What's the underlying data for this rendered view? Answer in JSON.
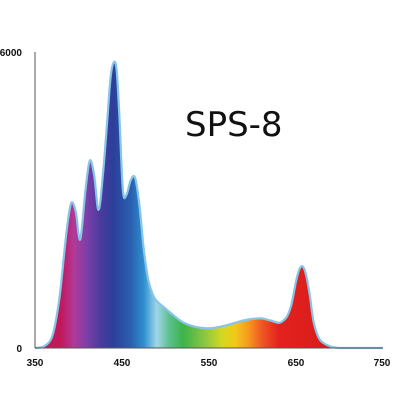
{
  "chart_data": {
    "type": "area",
    "title": "SPS-8",
    "xlabel": "",
    "ylabel": "",
    "xlim": [
      350,
      750
    ],
    "ylim": [
      0,
      6000
    ],
    "x_ticks": [
      350,
      450,
      550,
      650,
      750
    ],
    "x_tick_labels": [
      "350",
      "450",
      "550",
      "650",
      "750"
    ],
    "y_tick_labels": [
      "0",
      "6000"
    ],
    "grid": false,
    "legend": "none",
    "fill": "visible-spectrum gradient",
    "line_color": "#86c5e8",
    "series": [
      {
        "x": [
          350,
          360,
          370,
          378,
          384,
          388,
          392,
          397,
          402,
          408,
          413,
          418,
          423,
          428,
          433,
          437,
          441,
          444,
          447,
          451,
          455,
          460,
          465,
          470,
          475,
          480,
          485,
          490,
          500,
          510,
          520,
          530,
          540,
          550,
          560,
          570,
          580,
          590,
          600,
          610,
          620,
          630,
          635,
          640,
          645,
          650,
          654,
          658,
          662,
          666,
          670,
          675,
          680,
          690,
          700,
          710,
          720,
          730,
          750
        ],
        "y": [
          0,
          30,
          250,
          1000,
          2000,
          2600,
          2950,
          2750,
          2200,
          3200,
          3800,
          3500,
          2800,
          3500,
          4600,
          5500,
          5800,
          5600,
          4700,
          3200,
          3100,
          3400,
          3450,
          2900,
          2000,
          1400,
          1100,
          950,
          800,
          650,
          520,
          450,
          410,
          400,
          420,
          460,
          510,
          560,
          590,
          600,
          560,
          510,
          550,
          650,
          900,
          1350,
          1600,
          1650,
          1450,
          1050,
          550,
          250,
          120,
          30,
          0,
          0,
          0,
          0,
          0
        ]
      }
    ]
  }
}
